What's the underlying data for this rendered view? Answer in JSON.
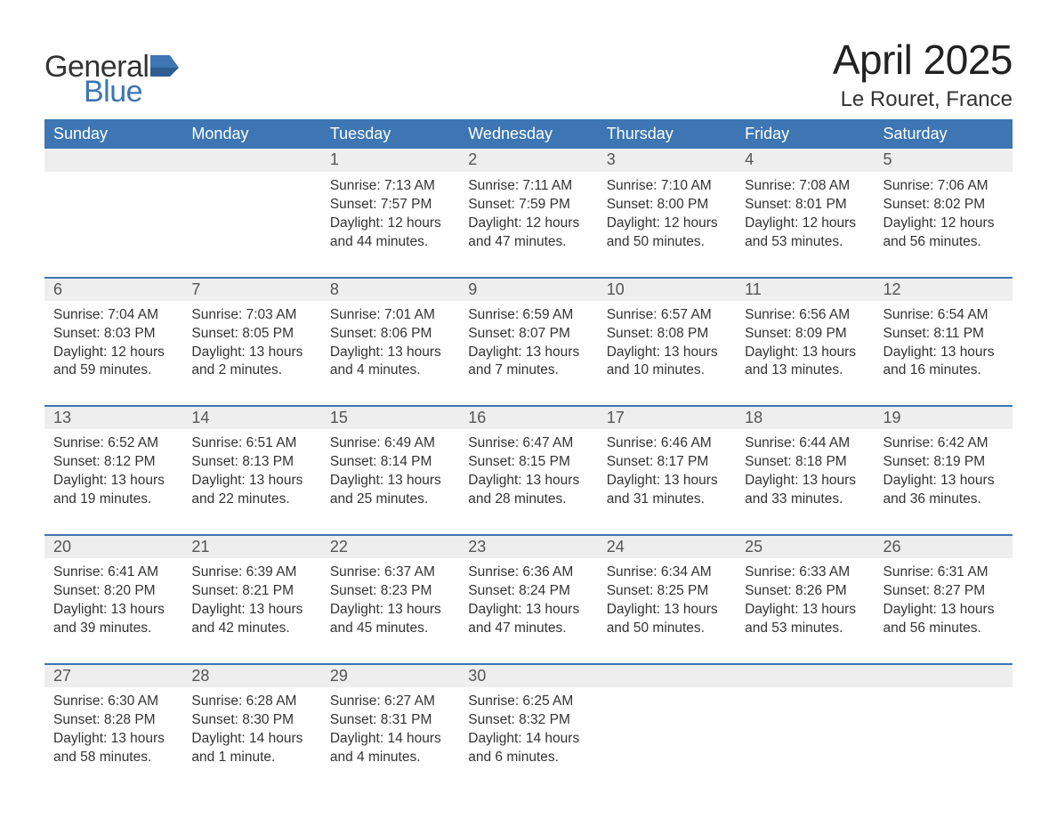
{
  "logo": {
    "word1": "General",
    "word2": "Blue",
    "brand_color": "#3d76b3"
  },
  "header": {
    "title": "April 2025",
    "subtitle": "Le Rouret, France"
  },
  "colors": {
    "header_bg": "#3d76b3",
    "header_text": "#ffffff",
    "daynum_bg": "#eeeeee",
    "row_divider": "#3d76b3",
    "text": "#333333"
  },
  "weekdays": [
    "Sunday",
    "Monday",
    "Tuesday",
    "Wednesday",
    "Thursday",
    "Friday",
    "Saturday"
  ],
  "weeks": [
    {
      "nums": [
        "",
        "",
        "1",
        "2",
        "3",
        "4",
        "5"
      ],
      "cells": [
        null,
        null,
        {
          "sunrise": "Sunrise: 7:13 AM",
          "sunset": "Sunset: 7:57 PM",
          "day1": "Daylight: 12 hours",
          "day2": "and 44 minutes."
        },
        {
          "sunrise": "Sunrise: 7:11 AM",
          "sunset": "Sunset: 7:59 PM",
          "day1": "Daylight: 12 hours",
          "day2": "and 47 minutes."
        },
        {
          "sunrise": "Sunrise: 7:10 AM",
          "sunset": "Sunset: 8:00 PM",
          "day1": "Daylight: 12 hours",
          "day2": "and 50 minutes."
        },
        {
          "sunrise": "Sunrise: 7:08 AM",
          "sunset": "Sunset: 8:01 PM",
          "day1": "Daylight: 12 hours",
          "day2": "and 53 minutes."
        },
        {
          "sunrise": "Sunrise: 7:06 AM",
          "sunset": "Sunset: 8:02 PM",
          "day1": "Daylight: 12 hours",
          "day2": "and 56 minutes."
        }
      ]
    },
    {
      "nums": [
        "6",
        "7",
        "8",
        "9",
        "10",
        "11",
        "12"
      ],
      "cells": [
        {
          "sunrise": "Sunrise: 7:04 AM",
          "sunset": "Sunset: 8:03 PM",
          "day1": "Daylight: 12 hours",
          "day2": "and 59 minutes."
        },
        {
          "sunrise": "Sunrise: 7:03 AM",
          "sunset": "Sunset: 8:05 PM",
          "day1": "Daylight: 13 hours",
          "day2": "and 2 minutes."
        },
        {
          "sunrise": "Sunrise: 7:01 AM",
          "sunset": "Sunset: 8:06 PM",
          "day1": "Daylight: 13 hours",
          "day2": "and 4 minutes."
        },
        {
          "sunrise": "Sunrise: 6:59 AM",
          "sunset": "Sunset: 8:07 PM",
          "day1": "Daylight: 13 hours",
          "day2": "and 7 minutes."
        },
        {
          "sunrise": "Sunrise: 6:57 AM",
          "sunset": "Sunset: 8:08 PM",
          "day1": "Daylight: 13 hours",
          "day2": "and 10 minutes."
        },
        {
          "sunrise": "Sunrise: 6:56 AM",
          "sunset": "Sunset: 8:09 PM",
          "day1": "Daylight: 13 hours",
          "day2": "and 13 minutes."
        },
        {
          "sunrise": "Sunrise: 6:54 AM",
          "sunset": "Sunset: 8:11 PM",
          "day1": "Daylight: 13 hours",
          "day2": "and 16 minutes."
        }
      ]
    },
    {
      "nums": [
        "13",
        "14",
        "15",
        "16",
        "17",
        "18",
        "19"
      ],
      "cells": [
        {
          "sunrise": "Sunrise: 6:52 AM",
          "sunset": "Sunset: 8:12 PM",
          "day1": "Daylight: 13 hours",
          "day2": "and 19 minutes."
        },
        {
          "sunrise": "Sunrise: 6:51 AM",
          "sunset": "Sunset: 8:13 PM",
          "day1": "Daylight: 13 hours",
          "day2": "and 22 minutes."
        },
        {
          "sunrise": "Sunrise: 6:49 AM",
          "sunset": "Sunset: 8:14 PM",
          "day1": "Daylight: 13 hours",
          "day2": "and 25 minutes."
        },
        {
          "sunrise": "Sunrise: 6:47 AM",
          "sunset": "Sunset: 8:15 PM",
          "day1": "Daylight: 13 hours",
          "day2": "and 28 minutes."
        },
        {
          "sunrise": "Sunrise: 6:46 AM",
          "sunset": "Sunset: 8:17 PM",
          "day1": "Daylight: 13 hours",
          "day2": "and 31 minutes."
        },
        {
          "sunrise": "Sunrise: 6:44 AM",
          "sunset": "Sunset: 8:18 PM",
          "day1": "Daylight: 13 hours",
          "day2": "and 33 minutes."
        },
        {
          "sunrise": "Sunrise: 6:42 AM",
          "sunset": "Sunset: 8:19 PM",
          "day1": "Daylight: 13 hours",
          "day2": "and 36 minutes."
        }
      ]
    },
    {
      "nums": [
        "20",
        "21",
        "22",
        "23",
        "24",
        "25",
        "26"
      ],
      "cells": [
        {
          "sunrise": "Sunrise: 6:41 AM",
          "sunset": "Sunset: 8:20 PM",
          "day1": "Daylight: 13 hours",
          "day2": "and 39 minutes."
        },
        {
          "sunrise": "Sunrise: 6:39 AM",
          "sunset": "Sunset: 8:21 PM",
          "day1": "Daylight: 13 hours",
          "day2": "and 42 minutes."
        },
        {
          "sunrise": "Sunrise: 6:37 AM",
          "sunset": "Sunset: 8:23 PM",
          "day1": "Daylight: 13 hours",
          "day2": "and 45 minutes."
        },
        {
          "sunrise": "Sunrise: 6:36 AM",
          "sunset": "Sunset: 8:24 PM",
          "day1": "Daylight: 13 hours",
          "day2": "and 47 minutes."
        },
        {
          "sunrise": "Sunrise: 6:34 AM",
          "sunset": "Sunset: 8:25 PM",
          "day1": "Daylight: 13 hours",
          "day2": "and 50 minutes."
        },
        {
          "sunrise": "Sunrise: 6:33 AM",
          "sunset": "Sunset: 8:26 PM",
          "day1": "Daylight: 13 hours",
          "day2": "and 53 minutes."
        },
        {
          "sunrise": "Sunrise: 6:31 AM",
          "sunset": "Sunset: 8:27 PM",
          "day1": "Daylight: 13 hours",
          "day2": "and 56 minutes."
        }
      ]
    },
    {
      "nums": [
        "27",
        "28",
        "29",
        "30",
        "",
        "",
        ""
      ],
      "cells": [
        {
          "sunrise": "Sunrise: 6:30 AM",
          "sunset": "Sunset: 8:28 PM",
          "day1": "Daylight: 13 hours",
          "day2": "and 58 minutes."
        },
        {
          "sunrise": "Sunrise: 6:28 AM",
          "sunset": "Sunset: 8:30 PM",
          "day1": "Daylight: 14 hours",
          "day2": "and 1 minute."
        },
        {
          "sunrise": "Sunrise: 6:27 AM",
          "sunset": "Sunset: 8:31 PM",
          "day1": "Daylight: 14 hours",
          "day2": "and 4 minutes."
        },
        {
          "sunrise": "Sunrise: 6:25 AM",
          "sunset": "Sunset: 8:32 PM",
          "day1": "Daylight: 14 hours",
          "day2": "and 6 minutes."
        },
        null,
        null,
        null
      ]
    }
  ]
}
